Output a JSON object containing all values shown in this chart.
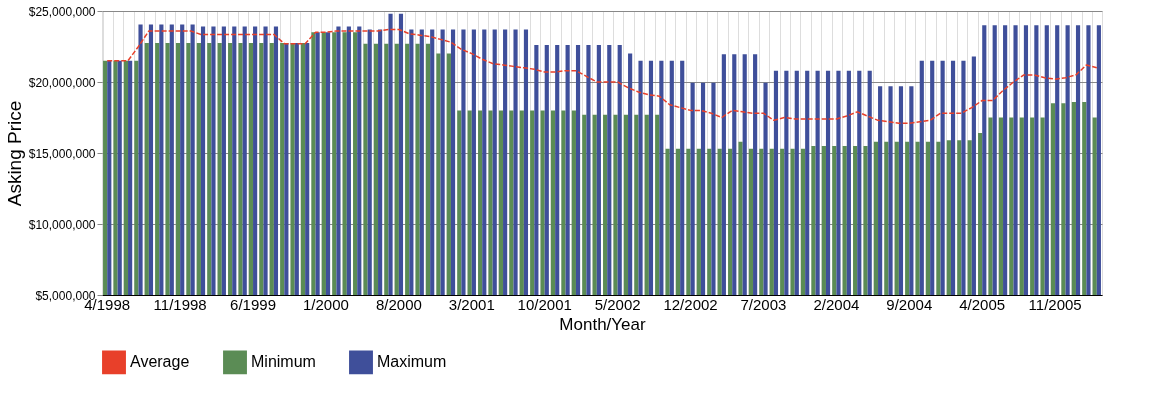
{
  "chart_data": {
    "type": "bar",
    "xlabel": "Month/Year",
    "ylabel": "Asking Price",
    "categories": [
      "4/1998",
      null,
      null,
      null,
      null,
      null,
      null,
      "11/1998",
      null,
      null,
      null,
      null,
      null,
      null,
      "6/1999",
      null,
      null,
      null,
      null,
      null,
      null,
      "1/2000",
      null,
      null,
      null,
      null,
      null,
      null,
      "8/2000",
      null,
      null,
      null,
      null,
      null,
      null,
      "3/2001",
      null,
      null,
      null,
      null,
      null,
      null,
      "10/2001",
      null,
      null,
      null,
      null,
      null,
      null,
      "5/2002",
      null,
      null,
      null,
      null,
      null,
      null,
      "12/2002",
      null,
      null,
      null,
      null,
      null,
      null,
      "7/2003",
      null,
      null,
      null,
      null,
      null,
      null,
      "2/2004",
      null,
      null,
      null,
      null,
      null,
      null,
      "9/2004",
      null,
      null,
      null,
      null,
      null,
      null,
      "4/2005",
      null,
      null,
      null,
      null,
      null,
      null,
      "11/2005",
      null,
      null,
      null,
      null
    ],
    "series": [
      {
        "name": "Average",
        "type": "line",
        "line_style": "dashed",
        "color": "#e8402a",
        "values": [
          21500000,
          21500000,
          21500000,
          22500000,
          23600000,
          23600000,
          23600000,
          23600000,
          23600000,
          23350000,
          23350000,
          23350000,
          23350000,
          23350000,
          23350000,
          23350000,
          23350000,
          22700000,
          22700000,
          22700000,
          23500000,
          23500000,
          23600000,
          23600000,
          23600000,
          23600000,
          23600000,
          23700000,
          23700000,
          23400000,
          23300000,
          23200000,
          23000000,
          22800000,
          22300000,
          22000000,
          21600000,
          21300000,
          21200000,
          21100000,
          21000000,
          20900000,
          20700000,
          20700000,
          20800000,
          20800000,
          20400000,
          20000000,
          20000000,
          20000000,
          19600000,
          19300000,
          19100000,
          19000000,
          18400000,
          18200000,
          18000000,
          18000000,
          17800000,
          17500000,
          18000000,
          17900000,
          17800000,
          17800000,
          17300000,
          17500000,
          17400000,
          17400000,
          17400000,
          17400000,
          17400000,
          17600000,
          17900000,
          17600000,
          17300000,
          17200000,
          17100000,
          17100000,
          17200000,
          17300000,
          17800000,
          17800000,
          17800000,
          18200000,
          18700000,
          18700000,
          19400000,
          20000000,
          20500000,
          20500000,
          20300000,
          20200000,
          20300000,
          20500000,
          21200000,
          21000000
        ]
      },
      {
        "name": "Minimum",
        "color": "#5b8c55",
        "values": [
          21500000,
          21500000,
          21500000,
          21500000,
          22750000,
          22750000,
          22750000,
          22750000,
          22750000,
          22750000,
          22750000,
          22750000,
          22750000,
          22750000,
          22750000,
          22750000,
          22750000,
          22750000,
          22750000,
          22750000,
          23500000,
          23500000,
          23500000,
          23500000,
          23500000,
          22700000,
          22700000,
          22700000,
          22700000,
          22700000,
          22700000,
          22700000,
          22000000,
          22000000,
          18000000,
          18000000,
          18000000,
          18000000,
          18000000,
          18000000,
          18000000,
          18000000,
          18000000,
          18000000,
          18000000,
          18000000,
          17700000,
          17700000,
          17700000,
          17700000,
          17700000,
          17700000,
          17700000,
          17700000,
          15300000,
          15300000,
          15300000,
          15300000,
          15300000,
          15300000,
          15300000,
          15800000,
          15300000,
          15300000,
          15300000,
          15300000,
          15300000,
          15300000,
          15500000,
          15500000,
          15500000,
          15500000,
          15500000,
          15500000,
          15800000,
          15800000,
          15800000,
          15800000,
          15800000,
          15800000,
          15800000,
          15900000,
          15900000,
          15900000,
          16400000,
          17500000,
          17500000,
          17500000,
          17500000,
          17500000,
          17500000,
          18500000,
          18500000,
          18600000,
          18600000,
          17500000
        ]
      },
      {
        "name": "Maximum",
        "color": "#3f4f9a",
        "values": [
          21500000,
          21500000,
          21500000,
          24050000,
          24050000,
          24050000,
          24050000,
          24050000,
          24050000,
          23900000,
          23900000,
          23900000,
          23900000,
          23900000,
          23900000,
          23900000,
          23900000,
          22750000,
          22750000,
          22750000,
          23500000,
          23500000,
          23900000,
          23900000,
          23900000,
          23700000,
          23700000,
          24800000,
          24800000,
          23700000,
          23700000,
          23700000,
          23700000,
          23700000,
          23700000,
          23700000,
          23700000,
          23700000,
          23700000,
          23700000,
          23700000,
          22600000,
          22600000,
          22600000,
          22600000,
          22600000,
          22600000,
          22600000,
          22600000,
          22600000,
          22000000,
          21500000,
          21500000,
          21500000,
          21500000,
          21500000,
          19950000,
          19950000,
          19950000,
          21950000,
          21950000,
          21950000,
          21950000,
          19950000,
          20800000,
          20800000,
          20800000,
          20800000,
          20800000,
          20800000,
          20800000,
          20800000,
          20800000,
          20800000,
          19700000,
          19700000,
          19700000,
          19700000,
          21500000,
          21500000,
          21500000,
          21500000,
          21500000,
          21800000,
          24000000,
          24000000,
          24000000,
          24000000,
          24000000,
          24000000,
          24000000,
          24000000,
          24000000,
          24000000,
          24000000,
          24000000
        ]
      }
    ],
    "ylim": [
      5000000,
      25000000
    ],
    "yticks": [
      {
        "value": 5000000,
        "label": "$5,000,000"
      },
      {
        "value": 10000000,
        "label": "$10,000,000"
      },
      {
        "value": 15000000,
        "label": "$15,000,000"
      },
      {
        "value": 20000000,
        "label": "$20,000,000"
      },
      {
        "value": 25000000,
        "label": "$25,000,000"
      }
    ],
    "grid": true,
    "legend": "bottom",
    "marker": "none"
  }
}
